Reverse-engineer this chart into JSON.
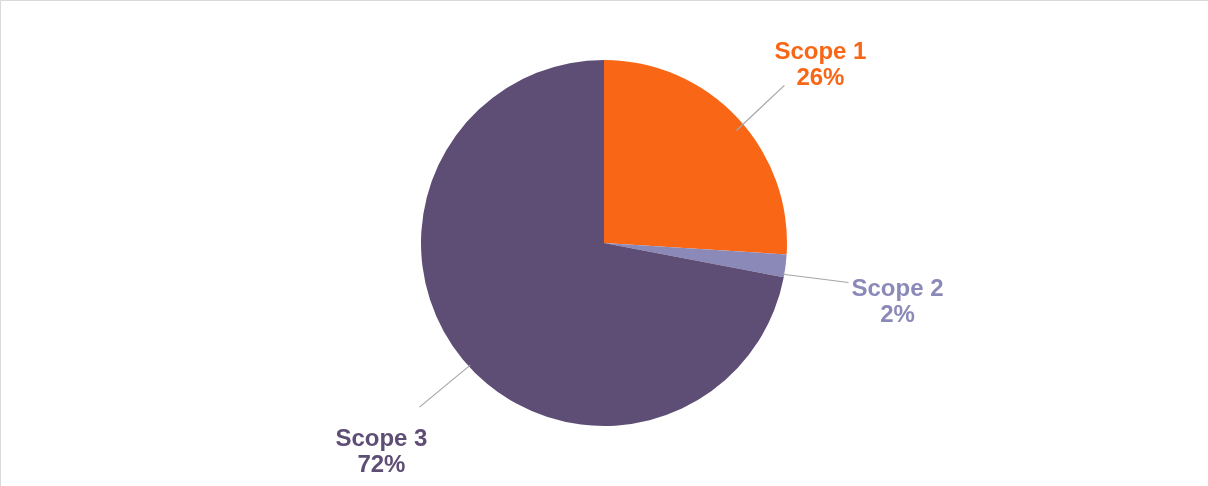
{
  "chart_data": {
    "type": "pie",
    "categories": [
      "Scope 1",
      "Scope 2",
      "Scope 3"
    ],
    "values": [
      26,
      2,
      72
    ],
    "value_labels": [
      "26%",
      "2%",
      "72%"
    ],
    "colors": [
      "#f96716",
      "#8b89b8",
      "#5e4e75"
    ]
  }
}
